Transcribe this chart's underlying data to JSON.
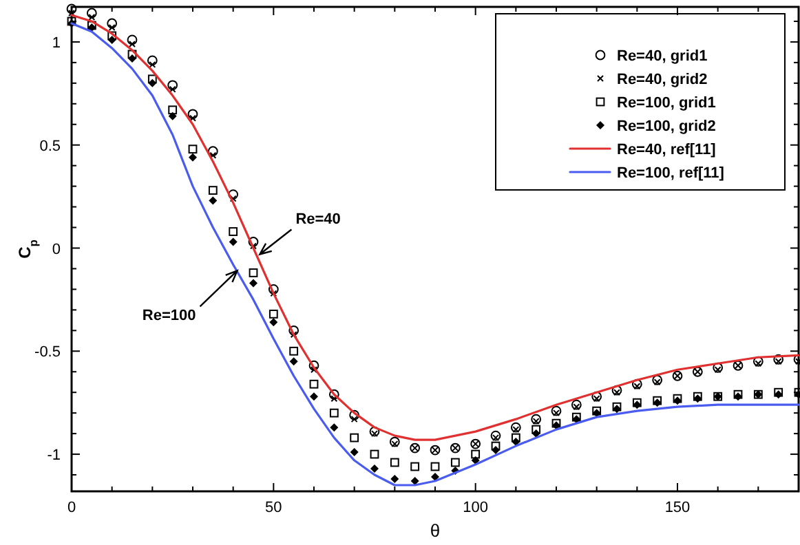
{
  "chart_data": {
    "type": "scatter",
    "xlabel": "θ",
    "ylabel": "C$_{p}$",
    "xlim": [
      0,
      180
    ],
    "ylim": [
      -1.18,
      1.17
    ],
    "xticks": [
      0,
      {
        "value": 10,
        "label": null
      },
      {
        "value": 20,
        "label": null
      },
      {
        "value": 30,
        "label": null
      },
      {
        "value": 40,
        "label": null
      },
      50,
      {
        "value": 60,
        "label": null
      },
      {
        "value": 70,
        "label": null
      },
      {
        "value": 80,
        "label": null
      },
      {
        "value": 90,
        "label": null
      },
      100,
      {
        "value": 110,
        "label": null
      },
      {
        "value": 120,
        "label": null
      },
      {
        "value": 130,
        "label": null
      },
      {
        "value": 140,
        "label": null
      },
      150,
      {
        "value": 160,
        "label": null
      },
      {
        "value": 170,
        "label": null
      }
    ],
    "yticks": [
      {
        "value": -1.1,
        "label": null
      },
      -1,
      {
        "value": -0.9,
        "label": null
      },
      {
        "value": -0.8,
        "label": null
      },
      {
        "value": -0.7,
        "label": null
      },
      {
        "value": -0.6,
        "label": null
      },
      -0.5,
      {
        "value": -0.4,
        "label": null
      },
      {
        "value": -0.3,
        "label": null
      },
      {
        "value": -0.2,
        "label": null
      },
      {
        "value": -0.1,
        "label": null
      },
      0,
      {
        "value": 0.1,
        "label": null
      },
      {
        "value": 0.2,
        "label": null
      },
      {
        "value": 0.3,
        "label": null
      },
      {
        "value": 0.4,
        "label": null
      },
      0.5,
      {
        "value": 0.6,
        "label": null
      },
      {
        "value": 0.7,
        "label": null
      },
      {
        "value": 0.8,
        "label": null
      },
      {
        "value": 0.9,
        "label": null
      },
      1,
      {
        "value": 1.1,
        "label": null
      }
    ],
    "grid": false,
    "legend": "top right",
    "x": [
      0,
      5,
      10,
      15,
      20,
      25,
      30,
      35,
      40,
      45,
      50,
      55,
      60,
      65,
      70,
      75,
      80,
      85,
      90,
      95,
      100,
      105,
      110,
      115,
      120,
      125,
      130,
      135,
      140,
      145,
      150,
      155,
      160,
      165,
      170,
      175,
      180
    ],
    "series": [
      {
        "name": "Re=40, grid1",
        "marker": "circle",
        "color": "#000000",
        "values": [
          1.16,
          1.14,
          1.09,
          1.01,
          0.91,
          0.79,
          0.65,
          0.47,
          0.26,
          0.03,
          -0.2,
          -0.4,
          -0.57,
          -0.71,
          -0.81,
          -0.89,
          -0.94,
          -0.97,
          -0.98,
          -0.97,
          -0.95,
          -0.91,
          -0.87,
          -0.83,
          -0.79,
          -0.76,
          -0.72,
          -0.69,
          -0.66,
          -0.64,
          -0.62,
          -0.6,
          -0.58,
          -0.57,
          -0.55,
          -0.54,
          -0.54
        ]
      },
      {
        "name": "Re=40, grid2",
        "marker": "cross",
        "color": "#000000",
        "values": [
          1.14,
          1.12,
          1.07,
          0.99,
          0.89,
          0.77,
          0.63,
          0.45,
          0.24,
          0.01,
          -0.22,
          -0.42,
          -0.59,
          -0.73,
          -0.83,
          -0.9,
          -0.95,
          -0.97,
          -0.98,
          -0.97,
          -0.95,
          -0.92,
          -0.88,
          -0.84,
          -0.8,
          -0.77,
          -0.73,
          -0.7,
          -0.67,
          -0.65,
          -0.62,
          -0.6,
          -0.59,
          -0.57,
          -0.56,
          -0.55,
          -0.55
        ]
      },
      {
        "name": "Re=100, grid1",
        "marker": "square",
        "color": "#000000",
        "values": [
          1.1,
          1.08,
          1.03,
          0.94,
          0.82,
          0.67,
          0.48,
          0.28,
          0.08,
          -0.12,
          -0.32,
          -0.5,
          -0.66,
          -0.8,
          -0.92,
          -1.0,
          -1.04,
          -1.06,
          -1.06,
          -1.04,
          -1.0,
          -0.96,
          -0.92,
          -0.88,
          -0.85,
          -0.82,
          -0.79,
          -0.77,
          -0.75,
          -0.74,
          -0.73,
          -0.72,
          -0.72,
          -0.71,
          -0.71,
          -0.7,
          -0.7
        ]
      },
      {
        "name": "Re=100, grid2",
        "marker": "diamond",
        "color": "#000000",
        "values": [
          1.09,
          1.07,
          1.01,
          0.92,
          0.8,
          0.64,
          0.44,
          0.23,
          0.03,
          -0.17,
          -0.36,
          -0.55,
          -0.72,
          -0.87,
          -0.99,
          -1.07,
          -1.12,
          -1.13,
          -1.11,
          -1.08,
          -1.03,
          -0.98,
          -0.94,
          -0.9,
          -0.86,
          -0.83,
          -0.8,
          -0.78,
          -0.76,
          -0.75,
          -0.74,
          -0.73,
          -0.72,
          -0.72,
          -0.71,
          -0.71,
          -0.71
        ]
      },
      {
        "name": "Re=40, ref[11]",
        "type": "line",
        "line_style": "solid",
        "color": "#e03030",
        "x": [
          0,
          5,
          10,
          15,
          20,
          25,
          30,
          35,
          40,
          45,
          50,
          55,
          60,
          65,
          70,
          75,
          80,
          85,
          90,
          100,
          110,
          120,
          130,
          140,
          150,
          160,
          170,
          180
        ],
        "values": [
          1.13,
          1.1,
          1.04,
          0.96,
          0.86,
          0.74,
          0.6,
          0.42,
          0.22,
          0.0,
          -0.22,
          -0.42,
          -0.58,
          -0.71,
          -0.8,
          -0.87,
          -0.91,
          -0.93,
          -0.93,
          -0.89,
          -0.83,
          -0.76,
          -0.7,
          -0.64,
          -0.59,
          -0.56,
          -0.53,
          -0.52
        ]
      },
      {
        "name": "Re=100, ref[11]",
        "type": "line",
        "line_style": "solid",
        "color": "#4a5cf0",
        "x": [
          0,
          5,
          10,
          15,
          20,
          25,
          30,
          35,
          40,
          45,
          50,
          55,
          60,
          65,
          70,
          75,
          80,
          85,
          90,
          100,
          110,
          120,
          130,
          140,
          150,
          160,
          170,
          180
        ],
        "values": [
          1.09,
          1.05,
          0.97,
          0.87,
          0.74,
          0.55,
          0.3,
          0.1,
          -0.08,
          -0.25,
          -0.44,
          -0.62,
          -0.78,
          -0.92,
          -1.03,
          -1.1,
          -1.15,
          -1.15,
          -1.13,
          -1.05,
          -0.96,
          -0.88,
          -0.82,
          -0.79,
          -0.77,
          -0.76,
          -0.76,
          -0.76
        ]
      }
    ],
    "annotations": [
      {
        "text": "Re=40",
        "x": 46.6,
        "y": -0.03
      },
      {
        "text": "Re=100",
        "x": 41,
        "y": -0.11
      }
    ]
  }
}
